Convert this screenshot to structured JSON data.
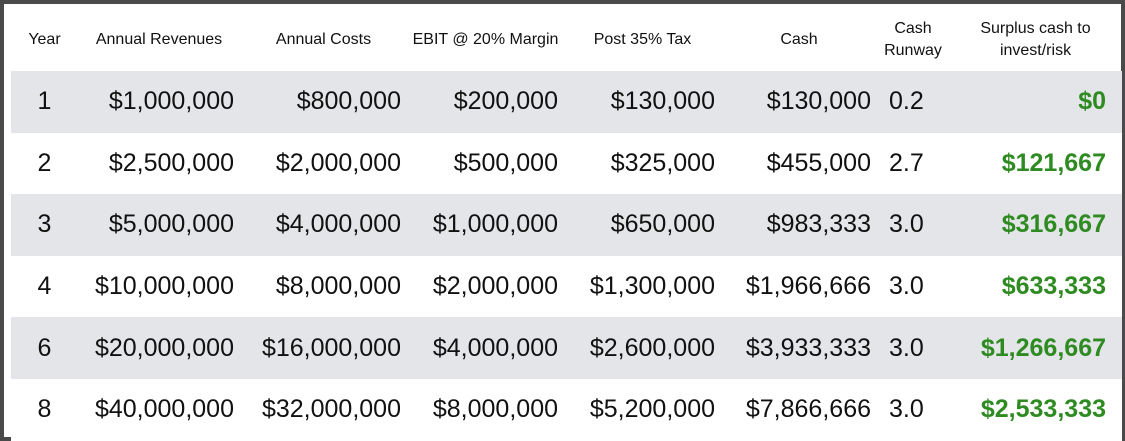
{
  "headers": {
    "year": "Year",
    "revenues": "Annual Revenues",
    "costs": "Annual Costs",
    "ebit": "EBIT @ 20% Margin",
    "post_tax": "Post 35% Tax",
    "cash": "Cash",
    "runway_line1": "Cash",
    "runway_line2": "Runway",
    "surplus_line1": "Surplus cash to",
    "surplus_line2": "invest/risk"
  },
  "rows": [
    {
      "year": "1",
      "revenues": "$1,000,000",
      "costs": "$800,000",
      "ebit": "$200,000",
      "post_tax": "$130,000",
      "cash": "$130,000",
      "runway": "0.2",
      "surplus": "$0"
    },
    {
      "year": "2",
      "revenues": "$2,500,000",
      "costs": "$2,000,000",
      "ebit": "$500,000",
      "post_tax": "$325,000",
      "cash": "$455,000",
      "runway": "2.7",
      "surplus": "$121,667"
    },
    {
      "year": "3",
      "revenues": "$5,000,000",
      "costs": "$4,000,000",
      "ebit": "$1,000,000",
      "post_tax": "$650,000",
      "cash": "$983,333",
      "runway": "3.0",
      "surplus": "$316,667"
    },
    {
      "year": "4",
      "revenues": "$10,000,000",
      "costs": "$8,000,000",
      "ebit": "$2,000,000",
      "post_tax": "$1,300,000",
      "cash": "$1,966,666",
      "runway": "3.0",
      "surplus": "$633,333"
    },
    {
      "year": "6",
      "revenues": "$20,000,000",
      "costs": "$16,000,000",
      "ebit": "$4,000,000",
      "post_tax": "$2,600,000",
      "cash": "$3,933,333",
      "runway": "3.0",
      "surplus": "$1,266,667"
    },
    {
      "year": "8",
      "revenues": "$40,000,000",
      "costs": "$32,000,000",
      "ebit": "$8,000,000",
      "post_tax": "$5,200,000",
      "cash": "$7,866,666",
      "runway": "3.0",
      "surplus": "$2,533,333"
    }
  ],
  "colors": {
    "border": "#4a4a4a",
    "band": "#e4e5e9",
    "surplus_text": "#2e8b22"
  }
}
